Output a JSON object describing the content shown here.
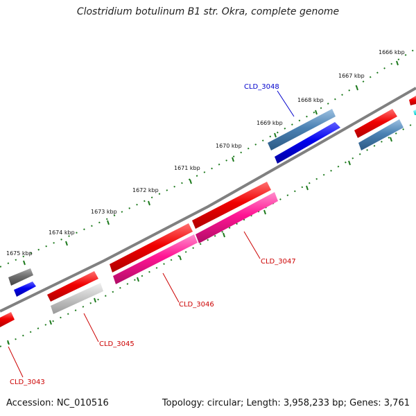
{
  "header": {
    "title": "Clostridium botulinum B1 str. Okra, complete genome"
  },
  "footer": {
    "accession": "Accession: NC_010516",
    "topology": "Topology: circular; Length: 3,958,233 bp; Genes: 3,761"
  },
  "map": {
    "kbp_labels": [
      "1666 kbp",
      "1667 kbp",
      "1668 kbp",
      "1669 kbp",
      "1670 kbp",
      "1671 kbp",
      "1672 kbp",
      "1673 kbp",
      "1674 kbp",
      "1675 kbp"
    ],
    "gene_labels": [
      "CLD_3048",
      "CLD_3047",
      "CLD_3046",
      "CLD_3045",
      "CLD_3043"
    ],
    "colors": {
      "forward_cds": "#ee1111",
      "reverse_cds": "#ff1493",
      "blue_gene": "#0000dd",
      "steel_gene": "#4b82b4",
      "gray_gene": "#777777",
      "light_gray_gene": "#c8c8c8",
      "backbone": "#888888",
      "tick_marks": "#1d7a1d",
      "label_blue": "#0000cc",
      "label_red": "#cc0000"
    }
  }
}
